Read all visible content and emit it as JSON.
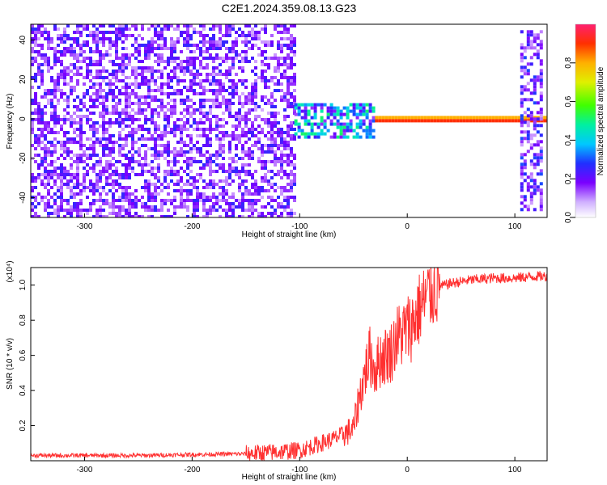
{
  "title": "C2E1.2024.359.08.13.G23",
  "chart_data": [
    {
      "type": "heatmap",
      "xlabel": "Height of straight line (km)",
      "ylabel": "Frequency (Hz)",
      "xlim": [
        -350,
        130
      ],
      "ylim": [
        -50,
        48
      ],
      "xticks": [
        "-300",
        "-200",
        "-100",
        "0",
        "100"
      ],
      "yticks": [
        "-40",
        "-20",
        "0",
        "20",
        "40"
      ],
      "xtick_values": [
        -300,
        -200,
        -100,
        0,
        100
      ],
      "ytick_values": [
        -40,
        -20,
        0,
        20,
        40
      ],
      "grid": false,
      "colorbar": {
        "label": "Normalized spectral amplitude",
        "range": [
          0,
          1
        ],
        "ticks": [
          "0.0",
          "0.2",
          "0.4",
          "0.6",
          "0.8"
        ],
        "tick_values": [
          0.0,
          0.2,
          0.4,
          0.6,
          0.8
        ],
        "colors": [
          "#ffffff",
          "#b266ff",
          "#7a00ff",
          "#2030ff",
          "#00c8ff",
          "#00f0a0",
          "#40ff00",
          "#e0f000",
          "#ffb000",
          "#ff3000",
          "#ff2070"
        ]
      },
      "regions": [
        {
          "x": [
            -350,
            -105
          ],
          "y": [
            -50,
            48
          ],
          "amplitude": 0.18
        },
        {
          "x": [
            -105,
            -30
          ],
          "y": [
            -10,
            8
          ],
          "amplitude": 0.45
        },
        {
          "x": [
            -30,
            130
          ],
          "y": [
            -1,
            1.5
          ],
          "amplitude": 0.95
        },
        {
          "x": [
            105,
            125
          ],
          "y": [
            -48,
            45
          ],
          "amplitude": 0.2
        }
      ]
    },
    {
      "type": "line",
      "xlabel": "Height of straight line (km)",
      "ylabel": "SNR (10 * v/v)",
      "y_multiplier": "(x10⁴)",
      "xlim": [
        -350,
        130
      ],
      "ylim": [
        0,
        1.1
      ],
      "xticks": [
        "-300",
        "-200",
        "-100",
        "0",
        "100"
      ],
      "yticks": [
        "0.2",
        "0.4",
        "0.6",
        "0.8",
        "1.0"
      ],
      "xtick_values": [
        -300,
        -200,
        -100,
        0,
        100
      ],
      "ytick_values": [
        0.2,
        0.4,
        0.6,
        0.8,
        1.0
      ],
      "grid": false,
      "series_color": "#ff3030",
      "x": [
        -350,
        -300,
        -250,
        -200,
        -150,
        -120,
        -100,
        -80,
        -70,
        -60,
        -50,
        -45,
        -40,
        -35,
        -30,
        -25,
        -20,
        -15,
        -10,
        -5,
        0,
        5,
        10,
        20,
        30,
        40,
        50,
        60,
        80,
        100,
        120,
        130
      ],
      "values": [
        0.03,
        0.03,
        0.03,
        0.035,
        0.04,
        0.05,
        0.06,
        0.1,
        0.12,
        0.15,
        0.18,
        0.35,
        0.48,
        0.6,
        0.52,
        0.58,
        0.6,
        0.62,
        0.7,
        0.72,
        0.75,
        0.78,
        0.85,
        0.95,
        0.99,
        1.01,
        1.02,
        1.03,
        1.04,
        1.04,
        1.05,
        1.05
      ]
    }
  ]
}
